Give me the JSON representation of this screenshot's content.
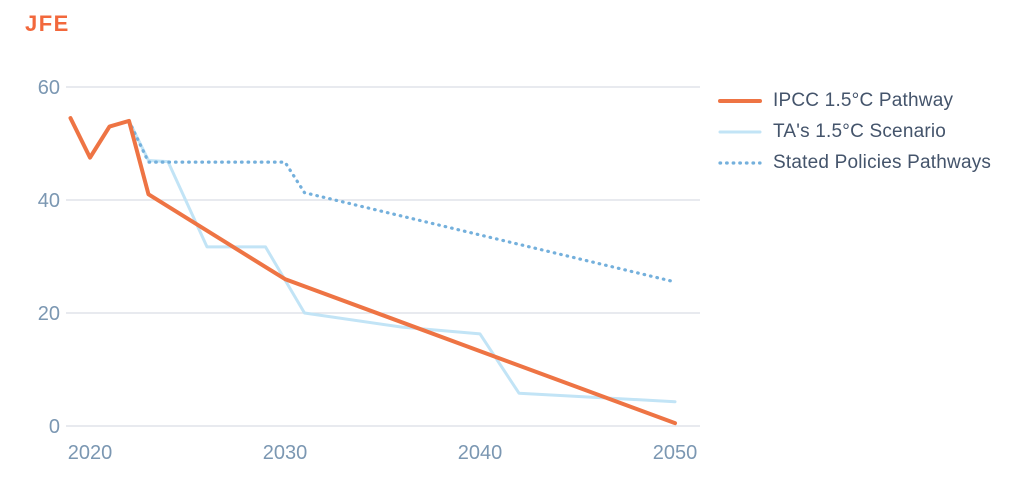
{
  "brand": {
    "logo_text": "JFE"
  },
  "colors": {
    "brand": "#f2683c",
    "axis_text": "#7b97b2",
    "grid": "#d9dee5",
    "legend_text": "#44546b",
    "ipcc_orange": "#ee7444",
    "ta_light_blue": "#c2e4f6",
    "stated_blue": "#74b0dc"
  },
  "chart_data": {
    "type": "line",
    "title": "",
    "xlabel": "",
    "ylabel": "",
    "x_ticks": [
      2020,
      2030,
      2040,
      2050
    ],
    "y_ticks": [
      0,
      20,
      40,
      60
    ],
    "xlim": [
      2018.7,
      2051.2
    ],
    "ylim": [
      0,
      60
    ],
    "grid": "horizontal-only",
    "legend_position": "right",
    "series": [
      {
        "name": "IPCC 1.5°C Pathway",
        "style": "solid",
        "color": "#ee7444",
        "width": 4,
        "z": 3,
        "points": [
          [
            2019,
            54.5
          ],
          [
            2020,
            47.5
          ],
          [
            2021,
            53
          ],
          [
            2022,
            54
          ],
          [
            2023,
            41
          ],
          [
            2030,
            26
          ],
          [
            2050,
            0.5
          ]
        ]
      },
      {
        "name": "TA's 1.5°C Scenario",
        "style": "solid",
        "color": "#c2e4f6",
        "width": 3,
        "z": 1,
        "points": [
          [
            2022,
            54
          ],
          [
            2023,
            47
          ],
          [
            2024,
            46.8
          ],
          [
            2026,
            31.7
          ],
          [
            2029,
            31.7
          ],
          [
            2031,
            20
          ],
          [
            2036,
            17.5
          ],
          [
            2040,
            16.3
          ],
          [
            2042,
            5.8
          ],
          [
            2050,
            4.3
          ]
        ]
      },
      {
        "name": "Stated Policies Pathways",
        "style": "dotted",
        "color": "#74b0dc",
        "width": 3.2,
        "z": 2,
        "points": [
          [
            2022,
            54
          ],
          [
            2023,
            46.7
          ],
          [
            2030,
            46.7
          ],
          [
            2031,
            41.3
          ],
          [
            2050,
            25.5
          ]
        ]
      }
    ]
  }
}
